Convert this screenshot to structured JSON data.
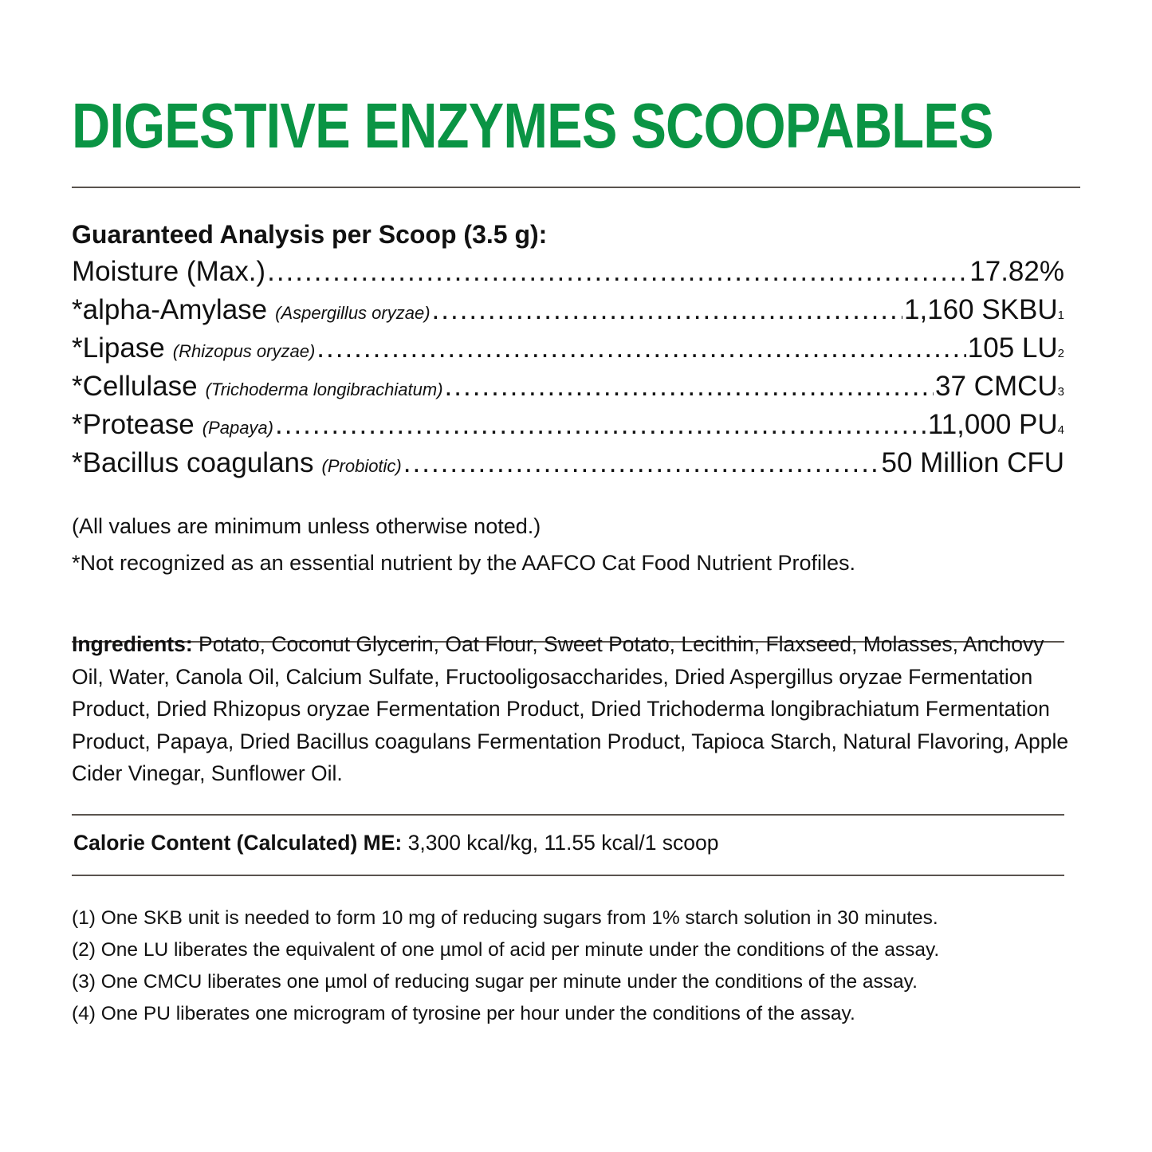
{
  "title": "DIGESTIVE ENZYMES SCOOPABLES",
  "title_color": "#0a9444",
  "analysis": {
    "heading": "Guaranteed Analysis per Scoop (3.5 g):",
    "rows": [
      {
        "name": "Moisture (Max.)",
        "source": "",
        "value": "17.82%",
        "footnote": ""
      },
      {
        "name": "*alpha-Amylase",
        "source": "(Aspergillus oryzae)",
        "value": "1,160 SKBU",
        "footnote": "1"
      },
      {
        "name": "*Lipase",
        "source": "(Rhizopus oryzae)",
        "value": "105 LU",
        "footnote": "2"
      },
      {
        "name": "*Cellulase",
        "source": "(Trichoderma longibrachiatum)",
        "value": "37 CMCU",
        "footnote": "3"
      },
      {
        "name": "*Protease",
        "source": "(Papaya)",
        "value": "11,000 PU",
        "footnote": "4"
      },
      {
        "name": "*Bacillus coagulans",
        "source": "(Probiotic)",
        "value": "50 Million CFU",
        "footnote": ""
      }
    ],
    "note_minimum": "(All values are minimum unless otherwise noted.)",
    "note_aafco": "*Not recognized as an essential nutrient by the AAFCO Cat Food Nutrient Profiles."
  },
  "ingredients": {
    "label": "Ingredients:",
    "text": " Potato, Coconut Glycerin, Oat Flour, Sweet Potato, Lecithin, Flaxseed, Molasses, Anchovy Oil, Water, Canola Oil, Calcium Sulfate, Fructooligosaccharides, Dried Aspergillus oryzae Fermentation Product, Dried Rhizopus oryzae Fermentation Product, Dried Trichoderma longibrachiatum Fermentation Product, Papaya, Dried Bacillus coagulans Fermentation Product, Tapioca Starch, Natural Flavoring, Apple Cider Vinegar, Sunflower Oil."
  },
  "calorie": {
    "label": "Calorie Content (Calculated) ME:",
    "value": " 3,300 kcal/kg, 11.55 kcal/1 scoop"
  },
  "footnotes": [
    "(1) One SKB unit is needed to form 10 mg of reducing sugars from 1% starch solution in 30 minutes.",
    "(2) One LU liberates the equivalent of one µmol of acid per minute under the conditions of the assay.",
    "(3) One CMCU liberates one µmol of reducing sugar per minute under the conditions of the assay.",
    "(4) One PU liberates one microgram of tyrosine per hour under the conditions of the assay."
  ]
}
